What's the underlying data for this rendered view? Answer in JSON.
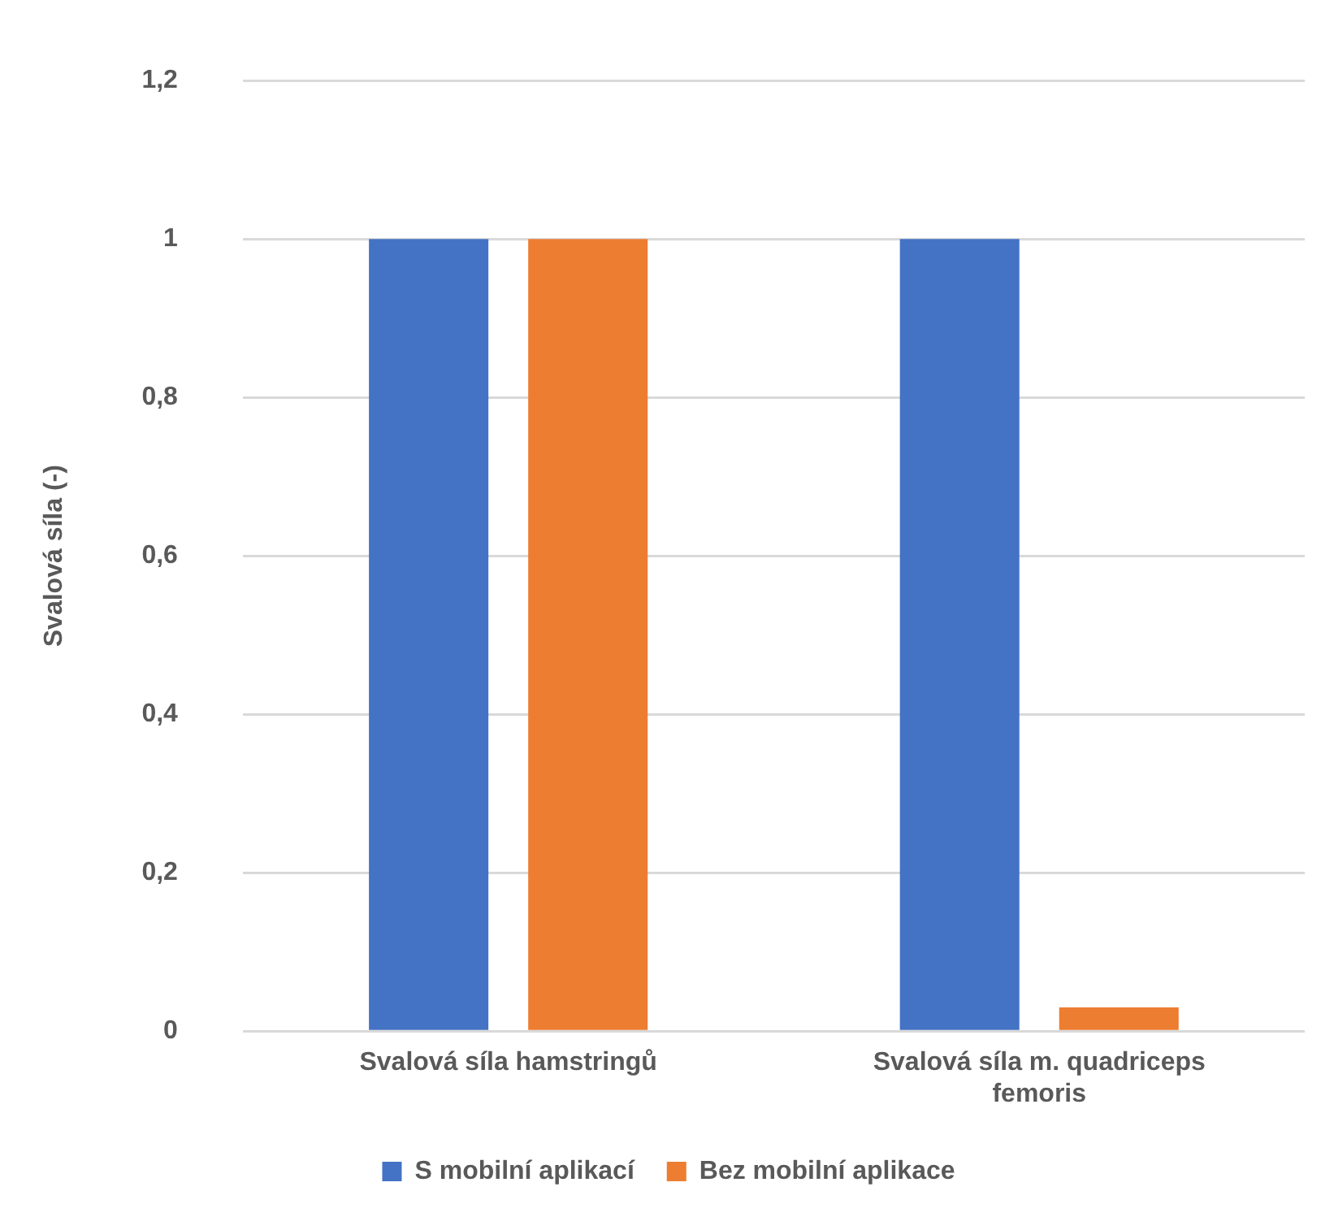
{
  "chart_data": {
    "type": "bar",
    "ylabel": "Svalová síla (-)",
    "categories": [
      "Svalová síla hamstringů",
      "Svalová síla m. quadriceps femoris"
    ],
    "series": [
      {
        "name": "S mobilní aplikací",
        "color": "#4472c4",
        "values": [
          1,
          1
        ]
      },
      {
        "name": "Bez mobilní aplikace",
        "color": "#ed7d31",
        "values": [
          1,
          0.03
        ]
      }
    ],
    "ylim": [
      0,
      1.2
    ],
    "yticks": [
      0,
      {
        "value": 0.2,
        "label": "0,2"
      },
      {
        "value": 0.4,
        "label": "0,4"
      },
      {
        "value": 0.6,
        "label": "0,6"
      },
      {
        "value": 0.8,
        "label": "0,8"
      },
      1,
      {
        "value": 1.2,
        "label": "1,2"
      }
    ],
    "grid": "y",
    "legend": "bottom"
  }
}
